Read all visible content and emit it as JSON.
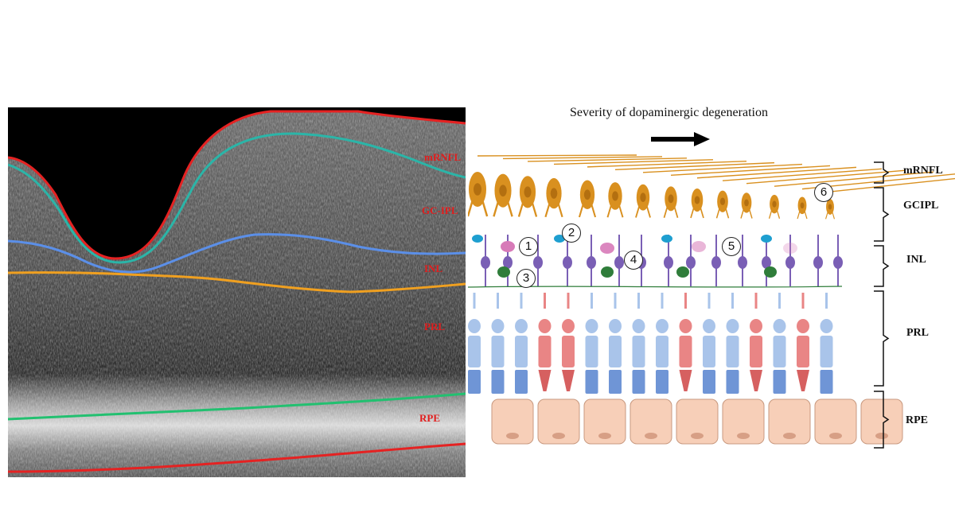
{
  "caption": "Severity of dopaminergic degeneration",
  "oct_labels": {
    "mrnfl": "mRNFL",
    "gcipl": "GC-IPL",
    "inl": "INL",
    "prl": "PRL",
    "rpe": "RPE"
  },
  "layer_labels": {
    "mrnfl": "mRNFL",
    "gcipl": "GCIPL",
    "inl": "INL",
    "prl": "PRL",
    "rpe": "RPE"
  },
  "markers": [
    "1",
    "2",
    "3",
    "4",
    "5",
    "6"
  ],
  "colors": {
    "oct_background": "#3a3a3a",
    "mrnfl_boundary": "#e52222",
    "gcipl_boundary": "#2bb5a8",
    "inl_boundary": "#5b8fe8",
    "opl_boundary": "#f0a020",
    "rpe_top_boundary": "#22c070",
    "rpe_bottom_boundary": "#e52222",
    "ganglion_cell": "#d9901f",
    "bipolar_cell": "#7a5fb5",
    "amacrine_cell": "#2f7d3a",
    "horizontal_cell": "#1e9fd0",
    "dopaminergic_cell": "#d77ab8",
    "rod": "#a9c4ea",
    "cone": "#e98585",
    "rpe_cell": "#f7cfb8"
  }
}
